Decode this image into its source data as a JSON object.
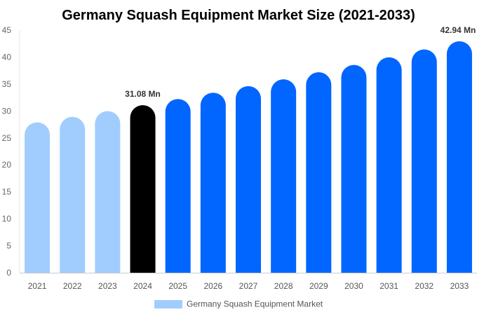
{
  "chart_data": {
    "type": "bar",
    "title": "Germany Squash Equipment Market Size (2021-2033)",
    "xlabel": "",
    "ylabel": "",
    "ylim": [
      0,
      45
    ],
    "yticks": [
      0,
      5,
      10,
      15,
      20,
      25,
      30,
      35,
      40,
      45
    ],
    "grid": false,
    "legend_position": "bottom",
    "categories": [
      "2021",
      "2022",
      "2023",
      "2024",
      "2025",
      "2026",
      "2027",
      "2028",
      "2029",
      "2030",
      "2031",
      "2032",
      "2033"
    ],
    "series": [
      {
        "name": "Germany Squash Equipment Market",
        "values": [
          27.9,
          28.92,
          29.98,
          31.08,
          32.22,
          33.39,
          34.61,
          35.88,
          37.19,
          38.55,
          39.96,
          41.42,
          42.94
        ]
      }
    ],
    "data_labels": [
      {
        "category": "2024",
        "text": "31.08 Mn"
      },
      {
        "category": "2033",
        "text": "42.94 Mn"
      }
    ],
    "colors": {
      "historical": "#a0cdfd",
      "base_year": "#000000",
      "forecast": "#0066ff"
    }
  }
}
